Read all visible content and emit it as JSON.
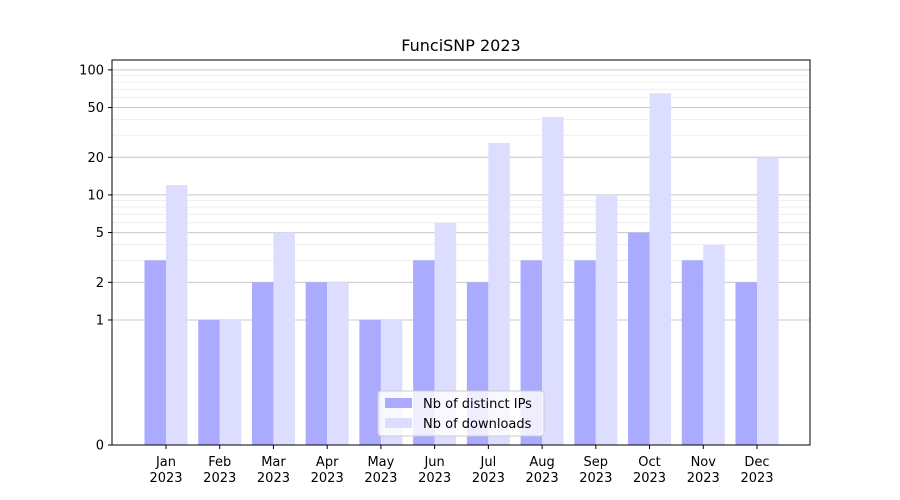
{
  "chart_data": {
    "type": "bar",
    "title": "FunciSNP 2023",
    "xlabel": "",
    "ylabel": "",
    "yscale": "symlog",
    "ylim": [
      0,
      120
    ],
    "yticks": [
      0,
      1,
      2,
      5,
      10,
      20,
      50,
      100
    ],
    "grid": true,
    "legend_position": "bottom-center",
    "categories": [
      [
        "Jan",
        "2023"
      ],
      [
        "Feb",
        "2023"
      ],
      [
        "Mar",
        "2023"
      ],
      [
        "Apr",
        "2023"
      ],
      [
        "May",
        "2023"
      ],
      [
        "Jun",
        "2023"
      ],
      [
        "Jul",
        "2023"
      ],
      [
        "Aug",
        "2023"
      ],
      [
        "Sep",
        "2023"
      ],
      [
        "Oct",
        "2023"
      ],
      [
        "Nov",
        "2023"
      ],
      [
        "Dec",
        "2023"
      ]
    ],
    "series": [
      {
        "name": "Nb of distinct IPs",
        "color": "#aaaaff",
        "values": [
          3,
          1,
          2,
          2,
          1,
          3,
          2,
          3,
          3,
          5,
          3,
          2
        ]
      },
      {
        "name": "Nb of downloads",
        "color": "#ddddff",
        "values": [
          12,
          1,
          5,
          2,
          1,
          6,
          26,
          42,
          10,
          65,
          4,
          20
        ]
      }
    ]
  }
}
